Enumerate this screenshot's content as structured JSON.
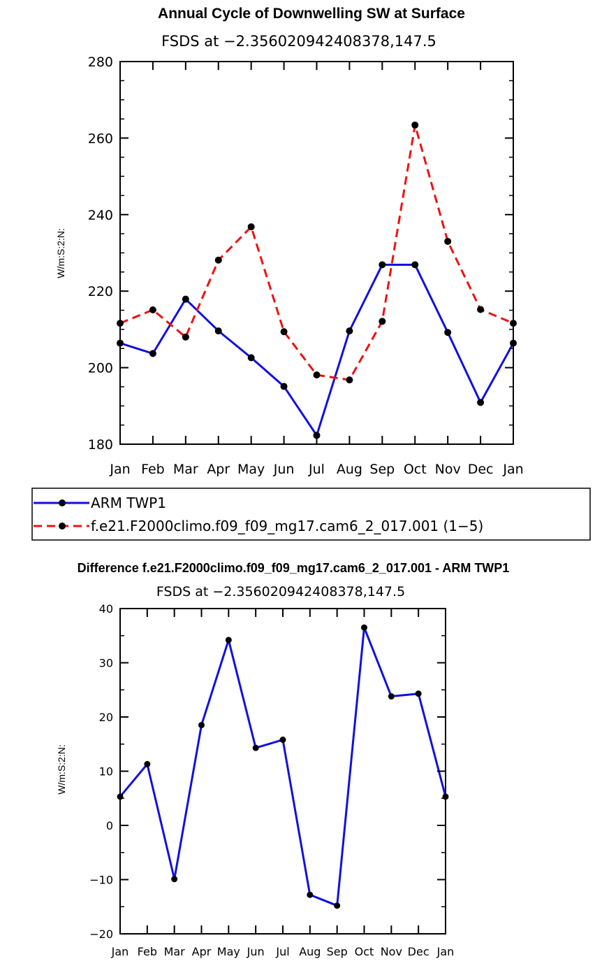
{
  "chart_data": [
    {
      "type": "line",
      "title": "Annual Cycle of Downwelling SW at Surface",
      "subtitle": "FSDS at −2.356020942408378,147.5",
      "xlabel": "",
      "ylabel": "W/m:S:2:N:",
      "categories": [
        "Jan",
        "Feb",
        "Mar",
        "Apr",
        "May",
        "Jun",
        "Jul",
        "Aug",
        "Sep",
        "Oct",
        "Nov",
        "Dec",
        "Jan"
      ],
      "ylim": [
        180,
        280
      ],
      "yticks": [
        180,
        200,
        220,
        240,
        260,
        280
      ],
      "ytick_labels": [
        "180",
        "200",
        "220",
        "240",
        "260",
        "280"
      ],
      "series": [
        {
          "name": "ARM TWP1",
          "color": "#1010e0",
          "dash": "solid",
          "values": [
            206.4,
            203.7,
            217.9,
            209.6,
            202.6,
            195.1,
            182.3,
            209.6,
            226.9,
            226.9,
            209.2,
            190.9,
            206.4
          ]
        },
        {
          "name": "f.e21.F2000climo.f09_f09_mg17.cam6_2_017.001 (1−5)",
          "color": "#ee1111",
          "dash": "dashed",
          "values": [
            211.6,
            215.1,
            208.0,
            228.1,
            236.8,
            209.4,
            198.1,
            196.8,
            212.1,
            263.4,
            233.0,
            215.2,
            211.6
          ]
        }
      ],
      "legend": {
        "position": "below",
        "entries": [
          "ARM TWP1",
          "f.e21.F2000climo.f09_f09_mg17.cam6_2_017.001 (1−5)"
        ]
      }
    },
    {
      "type": "line",
      "title": "Difference f.e21.F2000climo.f09_f09_mg17.cam6_2_017.001 - ARM TWP1",
      "subtitle": "FSDS at −2.356020942408378,147.5",
      "xlabel": "",
      "ylabel": "W/m:S:2:N:",
      "categories": [
        "Jan",
        "Feb",
        "Mar",
        "Apr",
        "May",
        "Jun",
        "Jul",
        "Aug",
        "Sep",
        "Oct",
        "Nov",
        "Dec",
        "Jan"
      ],
      "ylim": [
        -20,
        40
      ],
      "yticks": [
        -20,
        -10,
        0,
        10,
        20,
        30,
        40
      ],
      "ytick_labels": [
        "−20",
        "−10",
        "0",
        "10",
        "20",
        "30",
        "40"
      ],
      "series": [
        {
          "name": "Difference",
          "color": "#1010e0",
          "dash": "solid",
          "values": [
            5.3,
            11.3,
            -9.9,
            18.5,
            34.2,
            14.3,
            15.8,
            -12.8,
            -14.8,
            36.5,
            23.8,
            24.3,
            5.3
          ]
        }
      ]
    }
  ]
}
